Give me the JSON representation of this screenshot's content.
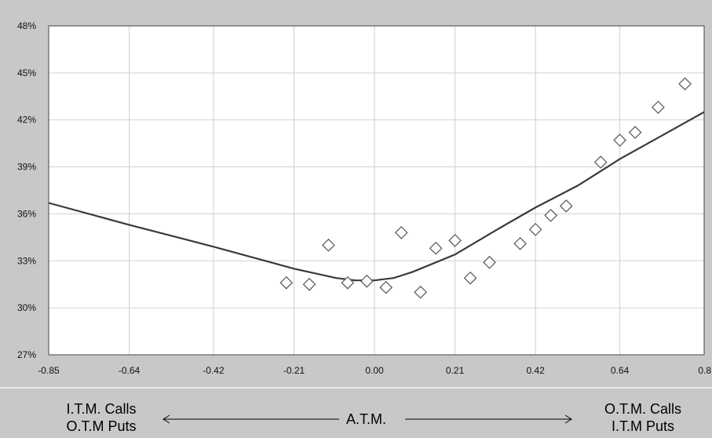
{
  "chart_data": {
    "type": "scatter",
    "x_ticks": [
      "-0.85",
      "-0.64",
      "-0.42",
      "-0.21",
      "0.00",
      "0.21",
      "0.42",
      "0.64",
      "0.8"
    ],
    "y_ticks": [
      "27%",
      "30%",
      "33%",
      "36%",
      "39%",
      "42%",
      "45%",
      "48%"
    ],
    "xlim": [
      -0.85,
      0.86
    ],
    "ylim": [
      27,
      48
    ],
    "grid": true,
    "points": [
      {
        "x": -0.23,
        "y": 31.6
      },
      {
        "x": -0.17,
        "y": 31.5
      },
      {
        "x": -0.12,
        "y": 34.0
      },
      {
        "x": -0.07,
        "y": 31.6
      },
      {
        "x": -0.02,
        "y": 31.7
      },
      {
        "x": 0.03,
        "y": 31.3
      },
      {
        "x": 0.07,
        "y": 34.8
      },
      {
        "x": 0.12,
        "y": 31.0
      },
      {
        "x": 0.16,
        "y": 33.8
      },
      {
        "x": 0.21,
        "y": 34.3
      },
      {
        "x": 0.25,
        "y": 31.9
      },
      {
        "x": 0.3,
        "y": 32.9
      },
      {
        "x": 0.38,
        "y": 34.1
      },
      {
        "x": 0.42,
        "y": 35.0
      },
      {
        "x": 0.46,
        "y": 35.9
      },
      {
        "x": 0.5,
        "y": 36.5
      },
      {
        "x": 0.59,
        "y": 39.3
      },
      {
        "x": 0.64,
        "y": 40.7
      },
      {
        "x": 0.68,
        "y": 41.2
      },
      {
        "x": 0.74,
        "y": 42.8
      },
      {
        "x": 0.81,
        "y": 44.3
      }
    ],
    "curve": [
      {
        "x": -0.85,
        "y": 36.7
      },
      {
        "x": -0.64,
        "y": 35.3
      },
      {
        "x": -0.42,
        "y": 33.9
      },
      {
        "x": -0.21,
        "y": 32.5
      },
      {
        "x": -0.1,
        "y": 31.9
      },
      {
        "x": -0.05,
        "y": 31.75
      },
      {
        "x": 0.0,
        "y": 31.75
      },
      {
        "x": 0.05,
        "y": 31.9
      },
      {
        "x": 0.1,
        "y": 32.3
      },
      {
        "x": 0.21,
        "y": 33.4
      },
      {
        "x": 0.32,
        "y": 35.0
      },
      {
        "x": 0.42,
        "y": 36.4
      },
      {
        "x": 0.53,
        "y": 37.8
      },
      {
        "x": 0.64,
        "y": 39.5
      },
      {
        "x": 0.75,
        "y": 41.0
      },
      {
        "x": 0.86,
        "y": 42.5
      }
    ]
  },
  "footer": {
    "left_line1": "I.T.M. Calls",
    "left_line2": "O.T.M Puts",
    "center": "A.T.M.",
    "right_line1": "O.T.M. Calls",
    "right_line2": "I.T.M Puts"
  }
}
